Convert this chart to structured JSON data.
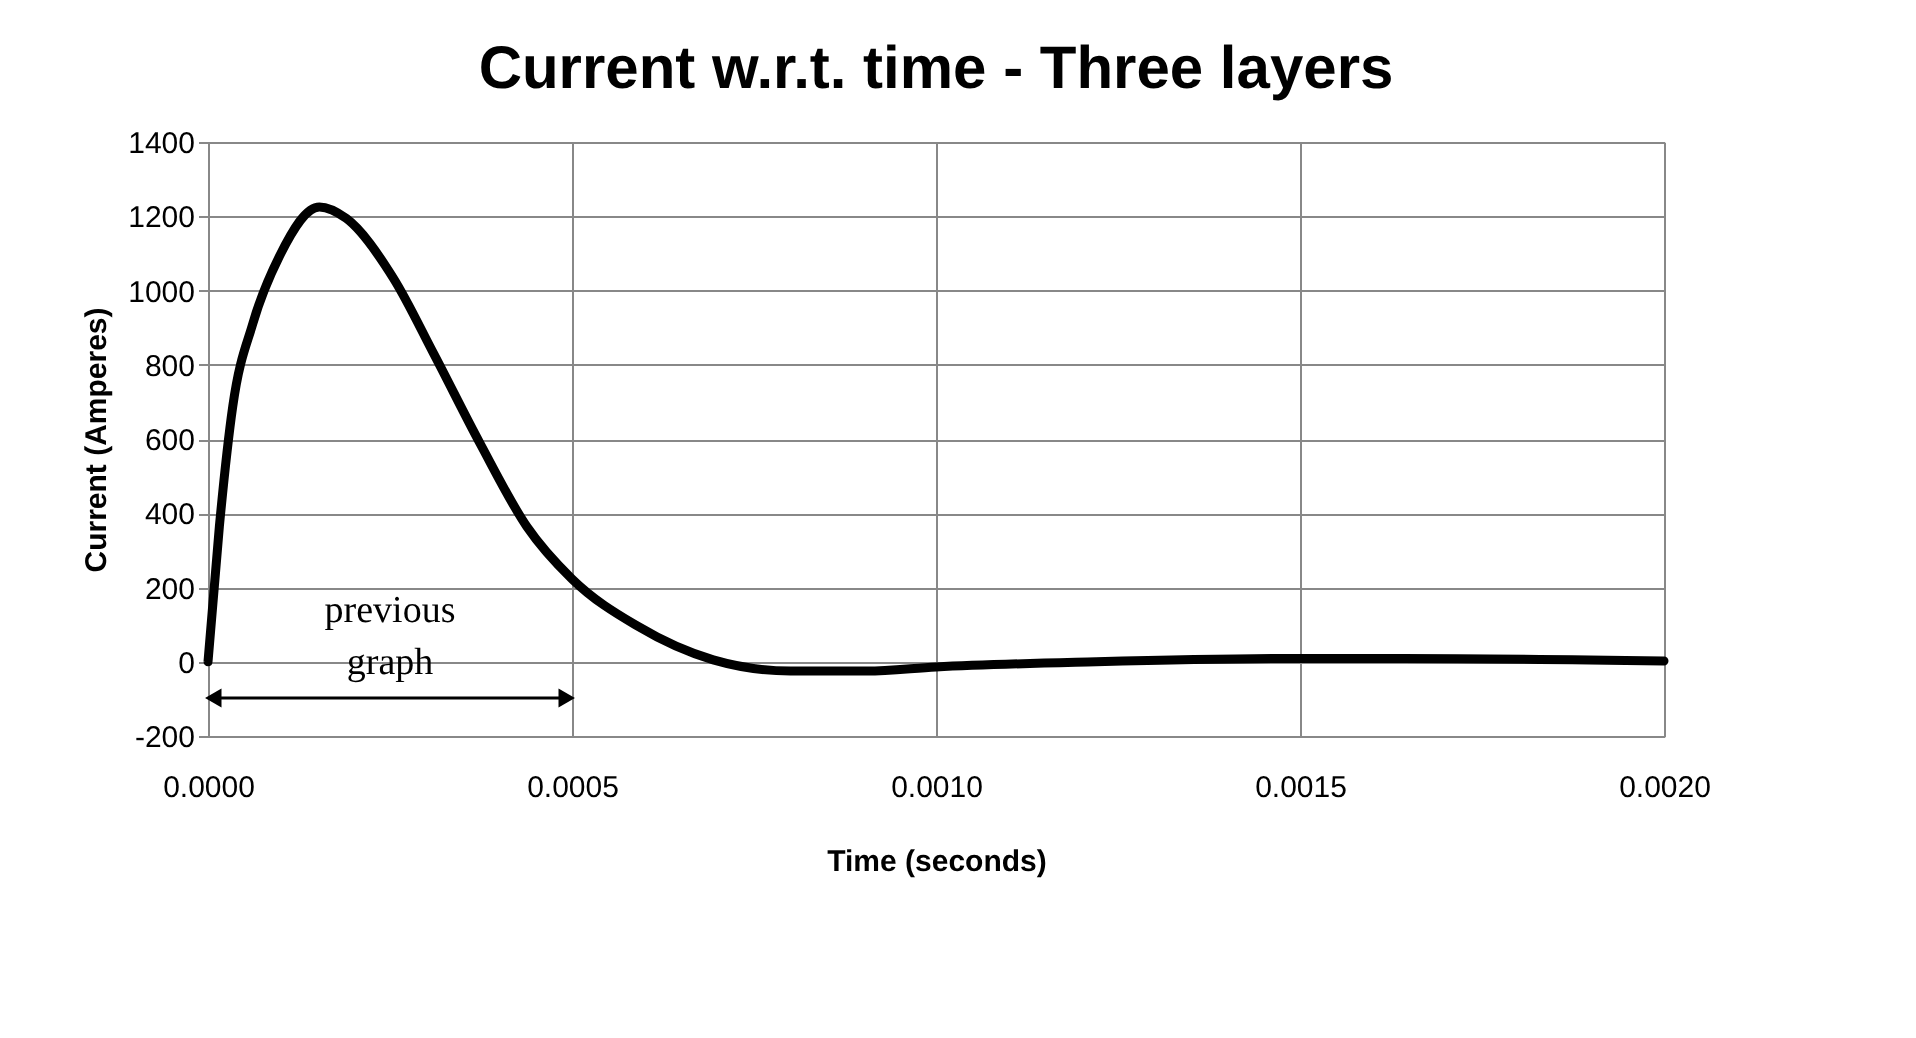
{
  "chart_data": {
    "type": "line",
    "title": "Current w.r.t. time - Three layers",
    "xlabel": "Time (seconds)",
    "ylabel": "Current (Amperes)",
    "x": [
      0,
      1.56e-05,
      3.4e-05,
      6.16e-05,
      9.83e-05,
      0.000153,
      0.00019,
      0.000255,
      0.00031,
      0.000374,
      0.000438,
      0.0005,
      0.000589,
      0.000694,
      0.0008,
      0.000905,
      0.001,
      0.00122,
      0.0015,
      0.00164,
      0.002
    ],
    "series": [
      {
        "color": "#000000",
        "values": [
          0,
          364,
          688,
          911,
          1093,
          1225,
          1194,
          1032,
          830,
          587,
          364,
          223,
          97,
          5,
          -25,
          -25,
          -14,
          0,
          9,
          9,
          2
        ]
      }
    ],
    "xlim": [
      0,
      0.002
    ],
    "xticks": [
      {
        "value": 0,
        "label": "0.0000"
      },
      {
        "value": 0.0005,
        "label": "0.0005"
      },
      {
        "value": 0.001,
        "label": "0.0010"
      },
      {
        "value": 0.0015,
        "label": "0.0015"
      },
      {
        "value": 0.002,
        "label": "0.0020"
      }
    ],
    "ylim": [
      -200,
      1400
    ],
    "yticks": [
      -200,
      0,
      200,
      400,
      600,
      800,
      1000,
      1200,
      1400
    ],
    "grid": true,
    "line_style": "solid",
    "marker": "none",
    "annotations": [
      "previous graph"
    ]
  }
}
